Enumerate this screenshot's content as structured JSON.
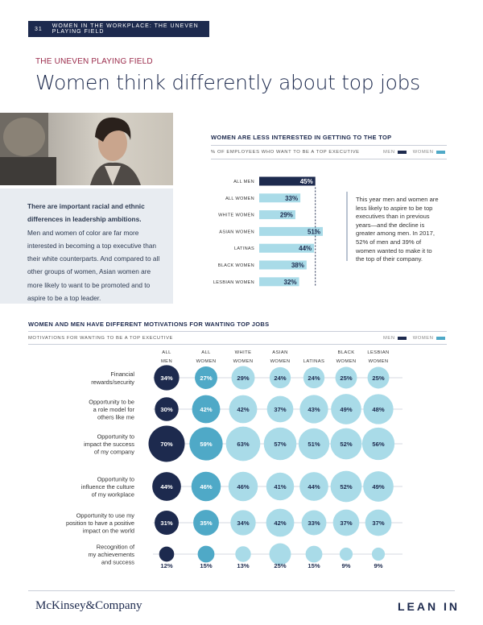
{
  "header": {
    "page_number": "31",
    "running_title": "WOMEN IN THE WORKPLACE: THE UNEVEN PLAYING FIELD"
  },
  "section_title": "THE UNEVEN PLAYING FIELD",
  "headline": "Women think differently about top jobs",
  "intro": {
    "lead": "There are important racial and ethnic differences in leadership ambitions.",
    "body": "Men and women of color are far more interested in becoming a top executive than their white counterparts. And compared to all other groups of women, Asian women are more likely to want to be promoted and to aspire to be a top leader."
  },
  "legend": {
    "men_label": "MEN",
    "women_label": "WOMEN"
  },
  "colors": {
    "men": "#1d2a4e",
    "women_accent": "#4fa9c7",
    "women_light": "#a9dbe8",
    "navy": "#1d2a4e"
  },
  "chart1_note": "This year men and women are less likely to aspire to be top executives than in previous years—and the decline is greater among men. In 2017, 52% of men and 39% of women wanted to make it to the top of their company.",
  "chart_data": [
    {
      "type": "bar",
      "title": "WOMEN ARE LESS INTERESTED IN GETTING TO THE TOP",
      "subtitle": "% OF EMPLOYEES WHO WANT TO BE A TOP EXECUTIVE",
      "orientation": "horizontal",
      "categories": [
        "ALL MEN",
        "ALL WOMEN",
        "WHITE WOMEN",
        "ASIAN WOMEN",
        "LATINAS",
        "BLACK WOMEN",
        "LESBIAN WOMEN"
      ],
      "values": [
        45,
        33,
        29,
        51,
        44,
        38,
        32
      ],
      "value_labels": [
        "45%",
        "33%",
        "29%",
        "51%",
        "44%",
        "38%",
        "32%"
      ],
      "groups": [
        "men",
        "women",
        "women",
        "women",
        "women",
        "women",
        "women"
      ],
      "reference_line": 45,
      "xlim": [
        0,
        51
      ]
    },
    {
      "type": "bubble",
      "title": "WOMEN AND MEN HAVE DIFFERENT MOTIVATIONS FOR WANTING TOP JOBS",
      "subtitle": "MOTIVATIONS FOR WANTING TO BE A TOP EXECUTIVE",
      "columns": [
        "ALL MEN",
        "ALL WOMEN",
        "WHITE WOMEN",
        "ASIAN WOMEN",
        "LATINAS",
        "BLACK WOMEN",
        "LESBIAN WOMEN"
      ],
      "rows": [
        {
          "label": "Financial rewards/security",
          "values": [
            34,
            27,
            29,
            24,
            24,
            25,
            25
          ]
        },
        {
          "label": "Opportunity to be a role model for others like me",
          "values": [
            30,
            42,
            42,
            37,
            43,
            49,
            48
          ]
        },
        {
          "label": "Opportunity to impact the success of my company",
          "values": [
            70,
            59,
            63,
            57,
            51,
            52,
            56
          ]
        },
        {
          "label": "Opportunity to influence the culture of my workplace",
          "values": [
            44,
            46,
            46,
            41,
            44,
            52,
            49
          ]
        },
        {
          "label": "Opportunity to use my position to have a positive impact on the world",
          "values": [
            31,
            35,
            34,
            42,
            33,
            37,
            37
          ]
        },
        {
          "label": "Recognition of my achievements and success",
          "values": [
            12,
            15,
            13,
            25,
            15,
            9,
            9
          ]
        }
      ]
    }
  ],
  "footer": {
    "left_logo": "McKinsey&Company",
    "right_logo": "LEAN IN"
  }
}
